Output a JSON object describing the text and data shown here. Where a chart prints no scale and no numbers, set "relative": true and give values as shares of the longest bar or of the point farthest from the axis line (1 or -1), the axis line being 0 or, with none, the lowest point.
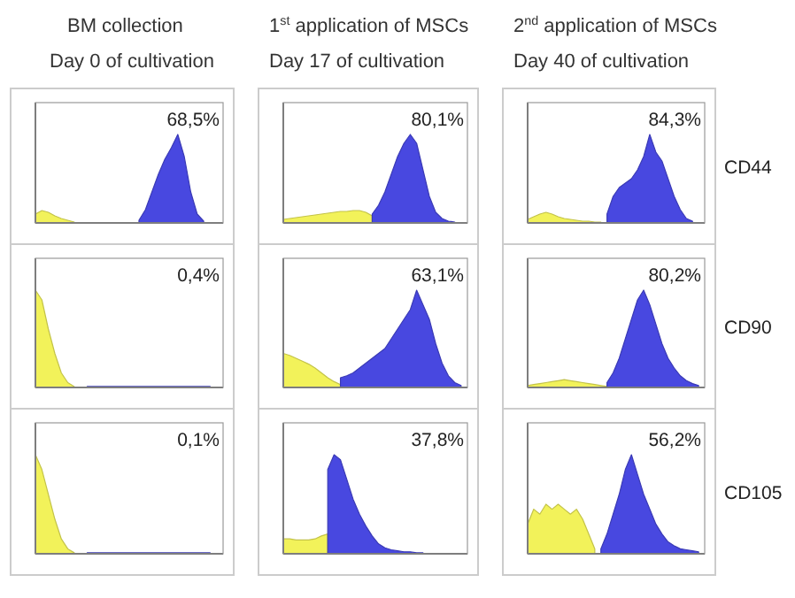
{
  "chart_data": [
    {
      "type": "area",
      "relative": true,
      "title": "BM collection",
      "subtitle": "Day 0 of cultivation",
      "annotations": [
        "68,5%"
      ],
      "categories": [
        null,
        null,
        null,
        null,
        null,
        null,
        null,
        null,
        null,
        null,
        null,
        null,
        null,
        null,
        null,
        null,
        null,
        null,
        null,
        null,
        null,
        null,
        null,
        null,
        null,
        null,
        null,
        null,
        null,
        null
      ],
      "series": [
        {
          "color": "#f2f25a",
          "values": [
            0.1,
            0.14,
            0.12,
            0.08,
            0.05,
            0.03,
            0.01,
            null,
            null,
            null,
            null,
            null,
            null,
            null,
            null,
            null,
            null,
            null,
            null,
            null,
            null,
            null,
            null,
            null,
            null,
            null,
            null,
            null,
            null,
            null
          ]
        },
        {
          "color": "#4848e0",
          "values": [
            null,
            null,
            null,
            null,
            null,
            null,
            null,
            null,
            null,
            null,
            null,
            null,
            null,
            null,
            null,
            null,
            0.03,
            0.15,
            0.35,
            0.55,
            0.72,
            0.85,
            1,
            0.75,
            0.35,
            0.1,
            0.02,
            null,
            null,
            null
          ]
        }
      ]
    },
    {
      "type": "area",
      "relative": true,
      "title": "1$^{st}$ application of MSCs",
      "subtitle": "Day 17 of cultivation",
      "annotations": [
        "80,1%"
      ],
      "categories": [
        null,
        null,
        null,
        null,
        null,
        null,
        null,
        null,
        null,
        null,
        null,
        null,
        null,
        null,
        null,
        null,
        null,
        null,
        null,
        null,
        null,
        null,
        null,
        null,
        null,
        null,
        null,
        null,
        null,
        null
      ],
      "series": [
        {
          "color": "#f2f25a",
          "values": [
            0.04,
            0.05,
            0.06,
            0.07,
            0.08,
            0.09,
            0.1,
            0.11,
            0.12,
            0.13,
            0.13,
            0.14,
            0.14,
            0.12,
            0.08,
            null,
            null,
            null,
            null,
            null,
            null,
            null,
            null,
            null,
            null,
            null,
            null,
            null,
            null,
            null
          ]
        },
        {
          "color": "#4848e0",
          "values": [
            null,
            null,
            null,
            null,
            null,
            null,
            null,
            null,
            null,
            null,
            null,
            null,
            null,
            null,
            0.1,
            0.2,
            0.35,
            0.55,
            0.75,
            0.9,
            1,
            0.9,
            0.6,
            0.3,
            0.12,
            0.05,
            0.02,
            0.01,
            null,
            null
          ]
        }
      ]
    },
    {
      "type": "area",
      "relative": true,
      "title": "2$^{nd}$ application of MSCs",
      "subtitle": "Day 40 of cultivation",
      "annotations": [
        "84,3%",
        "CD44"
      ],
      "categories": [
        null,
        null,
        null,
        null,
        null,
        null,
        null,
        null,
        null,
        null,
        null,
        null,
        null,
        null,
        null,
        null,
        null,
        null,
        null,
        null,
        null,
        null,
        null,
        null,
        null,
        null,
        null,
        null,
        null,
        null
      ],
      "series": [
        {
          "color": "#f2f25a",
          "values": [
            0.04,
            0.07,
            0.1,
            0.12,
            0.1,
            0.07,
            0.05,
            0.04,
            0.03,
            0.02,
            0.02,
            0.01,
            0.01,
            null,
            null,
            null,
            null,
            null,
            null,
            null,
            null,
            null,
            null,
            null,
            null,
            null,
            null,
            null,
            null,
            null
          ]
        },
        {
          "color": "#4848e0",
          "values": [
            null,
            null,
            null,
            null,
            null,
            null,
            null,
            null,
            null,
            null,
            null,
            null,
            null,
            0.1,
            0.3,
            0.4,
            0.45,
            0.5,
            0.6,
            0.75,
            1,
            0.8,
            0.7,
            0.5,
            0.3,
            0.15,
            0.05,
            0.02,
            null,
            null
          ]
        }
      ]
    },
    {
      "type": "area",
      "relative": true,
      "annotations": [
        "0,4%"
      ],
      "categories": [
        null,
        null,
        null,
        null,
        null,
        null,
        null,
        null,
        null,
        null,
        null,
        null,
        null,
        null,
        null,
        null,
        null,
        null,
        null,
        null,
        null,
        null,
        null,
        null,
        null,
        null,
        null,
        null,
        null,
        null
      ],
      "series": [
        {
          "color": "#f2f25a",
          "values": [
            1,
            0.9,
            0.6,
            0.35,
            0.15,
            0.05,
            0.01,
            null,
            null,
            null,
            null,
            null,
            null,
            null,
            null,
            null,
            null,
            null,
            null,
            null,
            null,
            null,
            null,
            null,
            null,
            null,
            null,
            null,
            null,
            null
          ]
        },
        {
          "color": "#4848e0",
          "values": [
            null,
            null,
            null,
            null,
            null,
            null,
            null,
            null,
            0.01,
            0.01,
            0.01,
            0.01,
            0.01,
            0.01,
            0.01,
            0.01,
            0.01,
            0.01,
            0.01,
            0.01,
            0.01,
            0.01,
            0.01,
            0.01,
            0.01,
            0.01,
            0.01,
            0.01,
            null,
            null
          ]
        }
      ]
    },
    {
      "type": "area",
      "relative": true,
      "annotations": [
        "63,1%"
      ],
      "categories": [
        null,
        null,
        null,
        null,
        null,
        null,
        null,
        null,
        null,
        null,
        null,
        null,
        null,
        null,
        null,
        null,
        null,
        null,
        null,
        null,
        null,
        null,
        null,
        null,
        null,
        null,
        null,
        null,
        null,
        null
      ],
      "series": [
        {
          "color": "#f2f25a",
          "values": [
            0.35,
            0.33,
            0.3,
            0.27,
            0.24,
            0.2,
            0.15,
            0.1,
            0.06,
            0.03,
            null,
            null,
            null,
            null,
            null,
            null,
            null,
            null,
            null,
            null,
            null,
            null,
            null,
            null,
            null,
            null,
            null,
            null,
            null,
            null
          ]
        },
        {
          "color": "#4848e0",
          "values": [
            null,
            null,
            null,
            null,
            null,
            null,
            null,
            null,
            null,
            0.1,
            0.12,
            0.15,
            0.2,
            0.25,
            0.3,
            0.35,
            0.4,
            0.5,
            0.6,
            0.7,
            0.8,
            1,
            0.85,
            0.7,
            0.45,
            0.25,
            0.12,
            0.05,
            0.02,
            null
          ]
        }
      ]
    },
    {
      "type": "area",
      "relative": true,
      "annotations": [
        "80,2%",
        "CD90"
      ],
      "categories": [
        null,
        null,
        null,
        null,
        null,
        null,
        null,
        null,
        null,
        null,
        null,
        null,
        null,
        null,
        null,
        null,
        null,
        null,
        null,
        null,
        null,
        null,
        null,
        null,
        null,
        null,
        null,
        null,
        null,
        null
      ],
      "series": [
        {
          "color": "#f2f25a",
          "values": [
            0.02,
            0.03,
            0.04,
            0.05,
            0.06,
            0.07,
            0.08,
            0.07,
            0.06,
            0.05,
            0.04,
            0.03,
            0.02,
            0.01,
            null,
            null,
            null,
            null,
            null,
            null,
            null,
            null,
            null,
            null,
            null,
            null,
            null,
            null,
            null,
            null
          ]
        },
        {
          "color": "#4848e0",
          "values": [
            null,
            null,
            null,
            null,
            null,
            null,
            null,
            null,
            null,
            null,
            null,
            null,
            null,
            0.05,
            0.15,
            0.3,
            0.5,
            0.7,
            0.9,
            1,
            0.85,
            0.65,
            0.45,
            0.3,
            0.2,
            0.12,
            0.07,
            0.04,
            0.02,
            null
          ]
        }
      ]
    },
    {
      "type": "area",
      "relative": true,
      "annotations": [
        "0,1%"
      ],
      "categories": [
        null,
        null,
        null,
        null,
        null,
        null,
        null,
        null,
        null,
        null,
        null,
        null,
        null,
        null,
        null,
        null,
        null,
        null,
        null,
        null,
        null,
        null,
        null,
        null,
        null,
        null,
        null,
        null,
        null,
        null
      ],
      "series": [
        {
          "color": "#f2f25a",
          "values": [
            1,
            0.85,
            0.6,
            0.35,
            0.15,
            0.05,
            0.01,
            null,
            null,
            null,
            null,
            null,
            null,
            null,
            null,
            null,
            null,
            null,
            null,
            null,
            null,
            null,
            null,
            null,
            null,
            null,
            null,
            null,
            null,
            null
          ]
        },
        {
          "color": "#4848e0",
          "values": [
            null,
            null,
            null,
            null,
            null,
            null,
            null,
            null,
            0.01,
            0.01,
            0.01,
            0.01,
            0.01,
            0.01,
            0.01,
            0.01,
            0.01,
            0.01,
            0.01,
            0.01,
            0.01,
            0.01,
            0.01,
            0.01,
            0.01,
            0.01,
            0.01,
            0.01,
            null,
            null
          ]
        }
      ]
    },
    {
      "type": "area",
      "relative": true,
      "annotations": [
        "37,8%"
      ],
      "categories": [
        null,
        null,
        null,
        null,
        null,
        null,
        null,
        null,
        null,
        null,
        null,
        null,
        null,
        null,
        null,
        null,
        null,
        null,
        null,
        null,
        null,
        null,
        null,
        null,
        null,
        null,
        null,
        null,
        null,
        null
      ],
      "series": [
        {
          "color": "#f2f25a",
          "values": [
            0.15,
            0.15,
            0.14,
            0.14,
            0.14,
            0.15,
            0.18,
            0.2,
            null,
            null,
            null,
            null,
            null,
            null,
            null,
            null,
            null,
            null,
            null,
            null,
            null,
            null,
            null,
            null,
            null,
            null,
            null,
            null,
            null,
            null
          ]
        },
        {
          "color": "#4848e0",
          "values": [
            null,
            null,
            null,
            null,
            null,
            null,
            null,
            0.85,
            1,
            0.95,
            0.75,
            0.55,
            0.4,
            0.28,
            0.18,
            0.1,
            0.06,
            0.04,
            0.03,
            0.02,
            0.02,
            0.01,
            0.01,
            null,
            null,
            null,
            null,
            null,
            null,
            null
          ]
        }
      ]
    },
    {
      "type": "area",
      "relative": true,
      "annotations": [
        "56,2%",
        "CD105"
      ],
      "categories": [
        null,
        null,
        null,
        null,
        null,
        null,
        null,
        null,
        null,
        null,
        null,
        null,
        null,
        null,
        null,
        null,
        null,
        null,
        null,
        null,
        null,
        null,
        null,
        null,
        null,
        null,
        null,
        null,
        null,
        null
      ],
      "series": [
        {
          "color": "#f2f25a",
          "values": [
            0.3,
            0.45,
            0.4,
            0.5,
            0.45,
            0.5,
            0.45,
            0.4,
            0.45,
            0.35,
            0.2,
            0.05,
            null,
            null,
            null,
            null,
            null,
            null,
            null,
            null,
            null,
            null,
            null,
            null,
            null,
            null,
            null,
            null,
            null,
            null
          ]
        },
        {
          "color": "#4848e0",
          "values": [
            null,
            null,
            null,
            null,
            null,
            null,
            null,
            null,
            null,
            null,
            null,
            null,
            0.05,
            0.2,
            0.4,
            0.6,
            0.85,
            1,
            0.8,
            0.6,
            0.45,
            0.3,
            0.2,
            0.12,
            0.08,
            0.05,
            0.04,
            0.03,
            0.02,
            null
          ]
        }
      ]
    }
  ]
}
